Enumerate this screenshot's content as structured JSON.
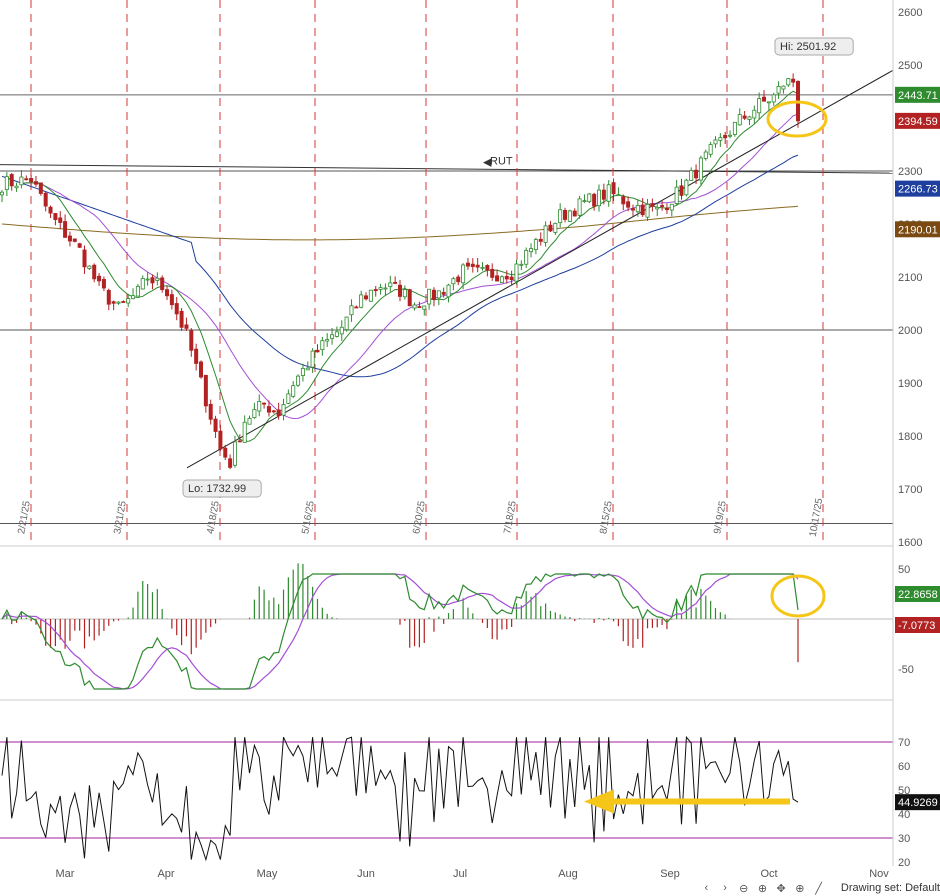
{
  "chart_data": [
    {
      "type": "candlestick",
      "symbol_label": "RUT",
      "ylim": [
        1600,
        2620
      ],
      "y_ticks": [
        "2600",
        "2500",
        "2400",
        "2300",
        "2200",
        "2100",
        "2000",
        "1900",
        "1800",
        "1700",
        "1600"
      ],
      "date_markers": [
        "2/21/25",
        "3/21/25",
        "4/18/25",
        "5/16/25",
        "6/20/25",
        "7/18/25",
        "8/15/25",
        "9/19/25",
        "10/17/25"
      ],
      "horizontal_lines": [
        2443.71,
        2300,
        2000,
        1635
      ],
      "high_callout": "Hi: 2501.92",
      "low_callout": "Lo: 1732.99",
      "price_tags": [
        {
          "value": "2443.71",
          "color": "#2e8b2e"
        },
        {
          "value": "2394.59",
          "color": "#b22222"
        },
        {
          "value": "2266.73",
          "color": "#1f3f9e"
        },
        {
          "value": "2190.01",
          "color": "#7a4a12"
        }
      ],
      "overlay_lines": [
        "trend support",
        "short moving average (green)",
        "mid moving average (violet)",
        "long moving average (blue)",
        "longest moving average (brown)"
      ],
      "highlight": "yellow ellipse around latest bar"
    },
    {
      "type": "line",
      "indicator": "MACD",
      "y_ticks": [
        "50",
        "-50"
      ],
      "value_tags": [
        {
          "value": "22.8658",
          "color": "#2e8b2e"
        },
        {
          "value": "-7.0773",
          "color": "#b22222"
        }
      ],
      "highlight": "yellow circle near latest value"
    },
    {
      "type": "line",
      "indicator": "RSI",
      "y_ticks": [
        "70",
        "60",
        "50",
        "40",
        "30",
        "20"
      ],
      "reference_levels": [
        70,
        30
      ],
      "value_tag": "44.9269",
      "highlight": "yellow arrow pointing left"
    }
  ],
  "months": [
    "Mar",
    "Apr",
    "May",
    "Jun",
    "Jul",
    "Aug",
    "Sep",
    "Oct",
    "Nov"
  ],
  "status_bar": {
    "icons": [
      "arrow-left-icon",
      "arrow-right-icon",
      "zoom-out-icon",
      "zoom-in-icon",
      "pan-icon",
      "crosshair-icon",
      "draw-icon"
    ],
    "text": "Drawing set: Default"
  },
  "colors": {
    "up": "#2e8b2e",
    "down": "#b22222",
    "ma_short": "#2e8b2e",
    "ma_mid": "#a44fd6",
    "ma_long": "#1f3f9e",
    "ma_longest": "#8b6b23",
    "highlight": "#f5c518",
    "date_dash": "#d43a3a",
    "level": "#a020a0"
  }
}
